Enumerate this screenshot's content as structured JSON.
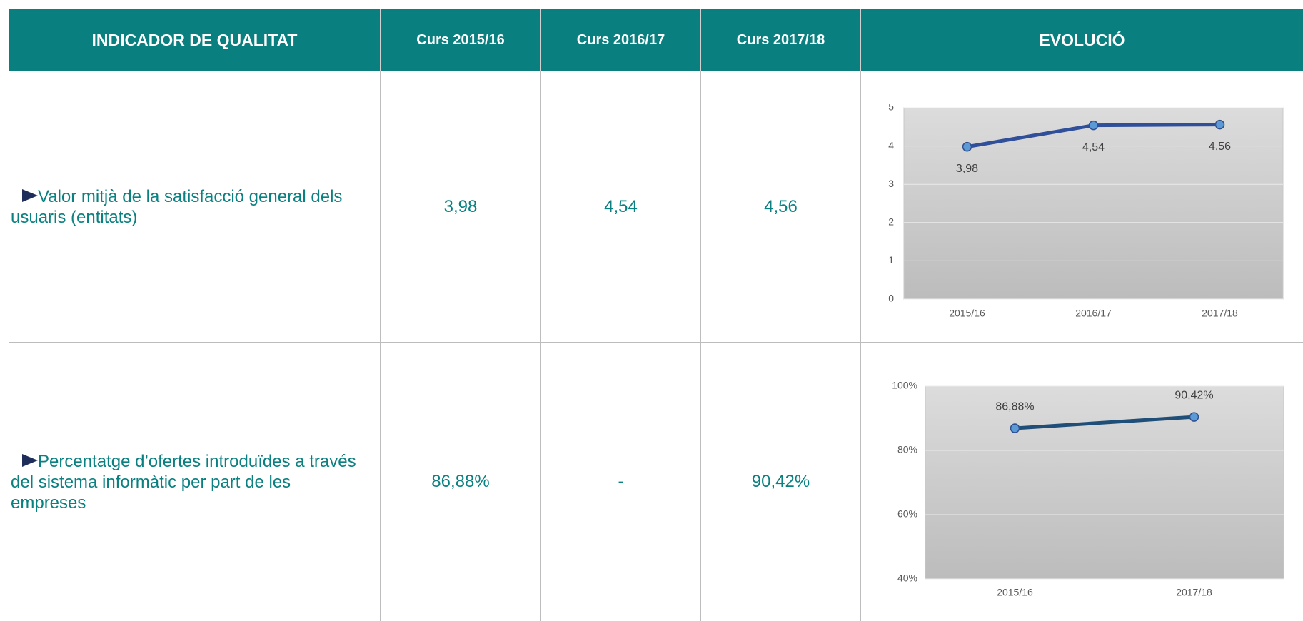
{
  "table": {
    "header": [
      "INDICADOR DE QUALITAT",
      "Curs 2015/16",
      "Curs 2016/17",
      "Curs 2017/18",
      "EVOLUCIÓ"
    ],
    "rows": [
      {
        "indicator": "Valor mitjà de la satisfacció general dels usuaris (entitats)",
        "cells": [
          "3,98",
          "4,54",
          "4,56"
        ],
        "chart": {
          "type": "line",
          "categories": [
            "2015/16",
            "2016/17",
            "2017/18"
          ],
          "values": [
            3.98,
            4.54,
            4.56
          ],
          "value_labels": [
            "3,98",
            "4,54",
            "4,56"
          ],
          "color": "#2f4f9a",
          "ylim": [
            0,
            5
          ],
          "yticks": [
            0,
            1,
            2,
            3,
            4,
            5
          ],
          "grid": true
        }
      },
      {
        "indicator": "Percentatge d’ofertes introduïdes a través del sistema informàtic per part de les empreses",
        "cells": [
          "86,88%",
          "-",
          "90,42%"
        ],
        "chart": {
          "type": "line",
          "categories": [
            "2015/16",
            "2017/18"
          ],
          "values": [
            86.88,
            90.42
          ],
          "value_labels": [
            "86,88%",
            "90,42%"
          ],
          "color": "#1f4e79",
          "ylim": [
            40,
            100
          ],
          "yticks": [
            {
              "value": 40,
              "label": "40%"
            },
            {
              "value": 60,
              "label": "60%"
            },
            {
              "value": 80,
              "label": "80%"
            },
            {
              "value": 100,
              "label": "100%"
            }
          ],
          "grid": true
        }
      }
    ]
  }
}
